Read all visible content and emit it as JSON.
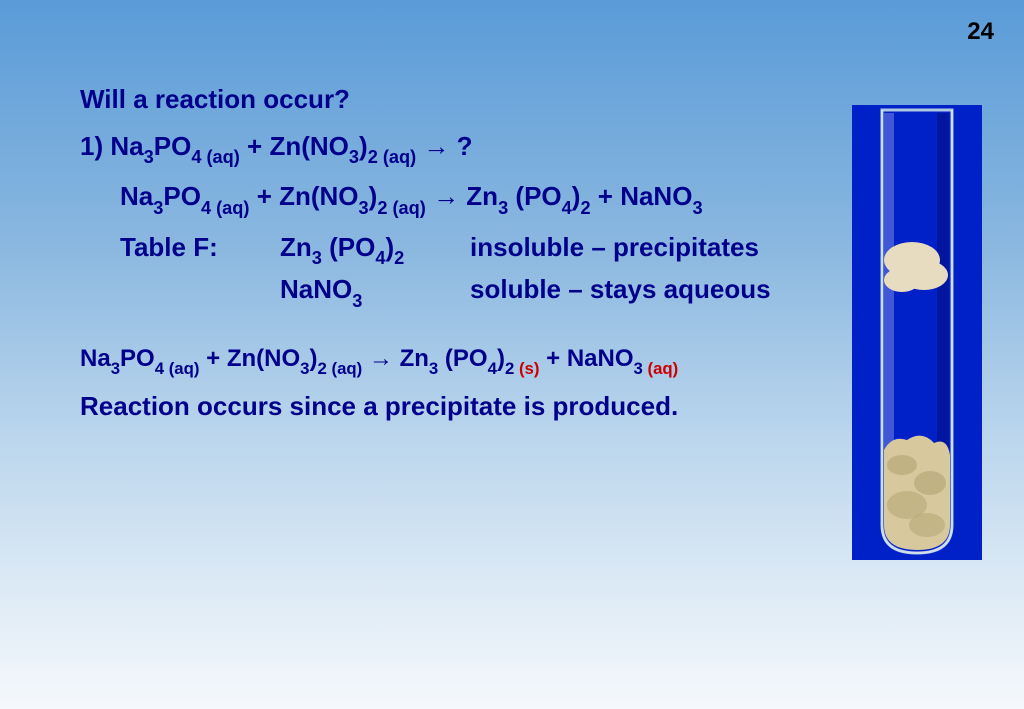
{
  "page_number": "24",
  "title": "Will a reaction occur?",
  "eq_label": "1)",
  "reactants_html": "Na<sub>3</sub>PO<sub>4 (aq)</sub> + Zn(NO<sub>3</sub>)<sub>2 (aq)</sub> &rarr; ?",
  "eq_expanded_html": "Na<sub>3</sub>PO<sub>4 (aq)</sub> + Zn(NO<sub>3</sub>)<sub>2 (aq)</sub> &rarr; Zn<sub>3</sub> (PO<sub>4</sub>)<sub>2</sub> + NaNO<sub>3</sub>",
  "table_label": "Table F:",
  "table_rows": [
    {
      "formula_html": "Zn<sub>3</sub> (PO<sub>4</sub>)<sub>2</sub>",
      "note": "insoluble – precipitates"
    },
    {
      "formula_html": "NaNO<sub>3</sub>",
      "note": "soluble – stays aqueous"
    }
  ],
  "final_eq_pre_html": "Na<sub>3</sub>PO<sub>4 (aq)</sub> + Zn(NO<sub>3</sub>)<sub>2 (aq)</sub> &rarr; Zn<sub>3</sub> (PO<sub>4</sub>)<sub>2 ",
  "final_eq_s": "(s)",
  "final_eq_mid_html": " + NaNO<sub>3 ",
  "final_eq_aq": "(aq)",
  "conclusion": "Reaction occurs since a precipitate is produced.",
  "tube": {
    "bg": "#0020c8",
    "glass_stroke": "#b0c8e0",
    "precip_light": "#e8dcc0",
    "precip_mid": "#d8c89e",
    "precip_shadow": "#b8a878",
    "highlight": "#f0f0ff"
  }
}
